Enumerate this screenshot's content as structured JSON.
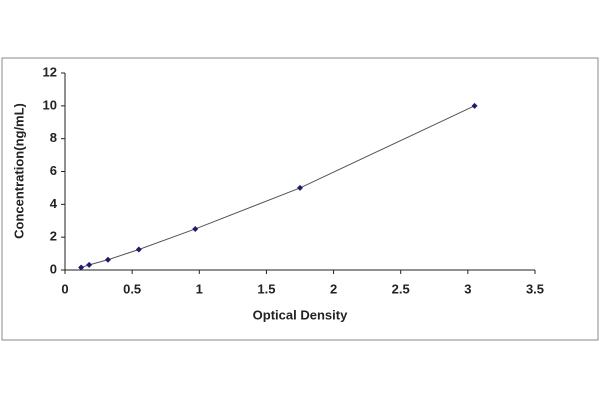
{
  "chart_data": {
    "type": "scatter",
    "x_label": "Optical Density",
    "y_label": "Concentration(ng/mL)",
    "series": [
      {
        "x": [
          0.12,
          0.18,
          0.32,
          0.55,
          0.97,
          1.75,
          3.05
        ],
        "values": [
          0.156,
          0.312,
          0.625,
          1.25,
          2.5,
          5,
          10
        ],
        "color": "#1c1c6e"
      }
    ],
    "connect": true,
    "line_color": "#555555",
    "xlim": [
      0,
      3.5
    ],
    "xticks": [
      0,
      0.5,
      1,
      1.5,
      2,
      2.5,
      3,
      3.5
    ],
    "ylim": [
      0,
      12
    ],
    "yticks": [
      0,
      2,
      4,
      6,
      8,
      10,
      12
    ],
    "grid": false
  }
}
